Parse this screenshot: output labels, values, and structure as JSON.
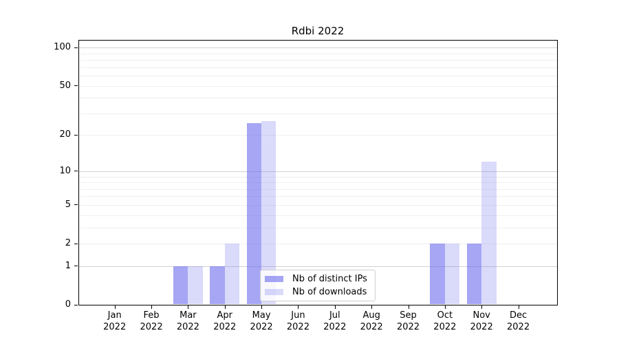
{
  "title": "Rdbi 2022",
  "legend": {
    "items": [
      {
        "label": "Nb of distinct IPs",
        "color": "rgba(102,102,238,0.58)"
      },
      {
        "label": "Nb of downloads",
        "color": "rgba(102,102,238,0.24)"
      }
    ]
  },
  "chart_data": {
    "type": "bar",
    "title": "Rdbi 2022",
    "categories": [
      "Jan 2022",
      "Feb 2022",
      "Mar 2022",
      "Apr 2022",
      "May 2022",
      "Jun 2022",
      "Jul 2022",
      "Aug 2022",
      "Sep 2022",
      "Oct 2022",
      "Nov 2022",
      "Dec 2022"
    ],
    "series": [
      {
        "name": "Nb of distinct IPs",
        "color": "rgba(102,102,238,0.58)",
        "values": [
          0,
          0,
          1,
          1,
          25,
          0,
          0,
          0,
          0,
          2,
          2,
          0
        ]
      },
      {
        "name": "Nb of downloads",
        "color": "rgba(102,102,238,0.24)",
        "values": [
          0,
          0,
          1,
          2,
          26,
          0,
          0,
          0,
          0,
          2,
          12,
          0
        ]
      }
    ],
    "yscale": "log1p",
    "ylim": [
      0,
      115
    ],
    "yticks": [
      0,
      1,
      2,
      5,
      10,
      20,
      50,
      100
    ],
    "gridlines": [
      1,
      2,
      3,
      4,
      5,
      6,
      7,
      8,
      9,
      10,
      20,
      30,
      40,
      50,
      60,
      70,
      80,
      90,
      100
    ],
    "major_gridlines": [
      1,
      10,
      100
    ],
    "grid": true,
    "legend_position": "lower center",
    "xlabel": "",
    "ylabel": ""
  }
}
